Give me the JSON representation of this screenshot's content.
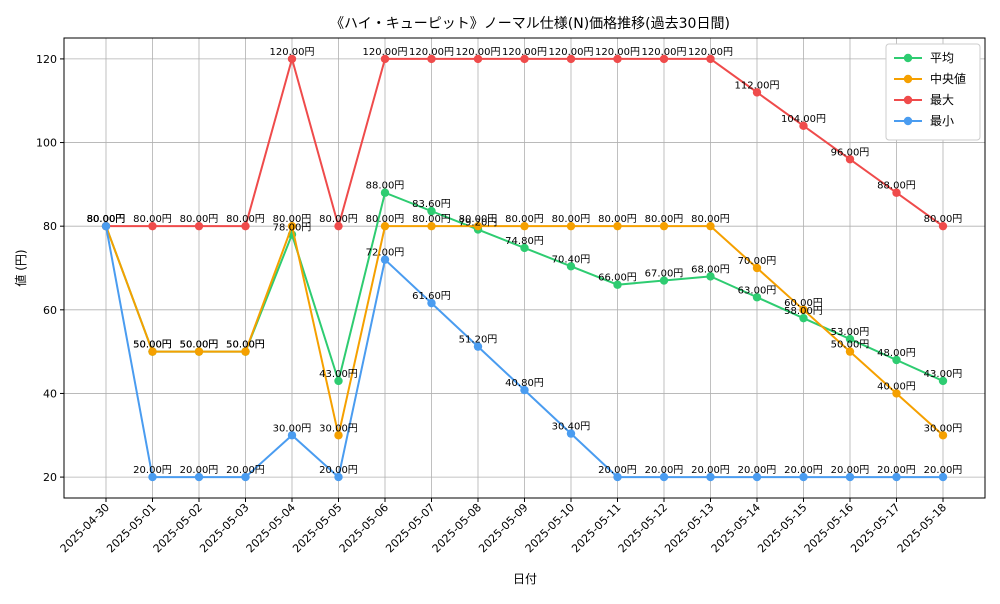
{
  "chart_data": {
    "type": "line",
    "title": "《ハイ・キューピット》ノーマル仕様(N)価格推移(過去30日間)",
    "xlabel": "日付",
    "ylabel": "値 (円)",
    "ylim": [
      15,
      125
    ],
    "yticks": [
      20,
      40,
      60,
      80,
      100,
      120
    ],
    "grid": true,
    "legend_position": "top-right",
    "categories": [
      "2025-04-30",
      "2025-05-01",
      "2025-05-02",
      "2025-05-03",
      "2025-05-04",
      "2025-05-05",
      "2025-05-06",
      "2025-05-07",
      "2025-05-08",
      "2025-05-09",
      "2025-05-10",
      "2025-05-11",
      "2025-05-12",
      "2025-05-13",
      "2025-05-14",
      "2025-05-15",
      "2025-05-16",
      "2025-05-17",
      "2025-05-18"
    ],
    "series": [
      {
        "name": "平均",
        "color": "#2ecc71",
        "values": [
          80,
          50,
          50,
          50,
          78,
          43,
          88,
          83.6,
          79.2,
          74.8,
          70.4,
          66,
          67,
          68,
          63,
          58,
          53,
          48,
          43
        ]
      },
      {
        "name": "中央値",
        "color": "#f5a000",
        "values": [
          80,
          50,
          50,
          50,
          80,
          30,
          80,
          80,
          80,
          80,
          80,
          80,
          80,
          80,
          70,
          60,
          50,
          40,
          30
        ]
      },
      {
        "name": "最大",
        "color": "#ef4b4b",
        "values": [
          80,
          80,
          80,
          80,
          120,
          80,
          120,
          120,
          120,
          120,
          120,
          120,
          120,
          120,
          112,
          104,
          96,
          88,
          80
        ]
      },
      {
        "name": "最小",
        "color": "#4a9cf0",
        "values": [
          80,
          20,
          20,
          20,
          30,
          20,
          72,
          61.6,
          51.2,
          40.8,
          30.4,
          20,
          20,
          20,
          20,
          20,
          20,
          20,
          20
        ]
      }
    ],
    "label_suffix": "円"
  }
}
